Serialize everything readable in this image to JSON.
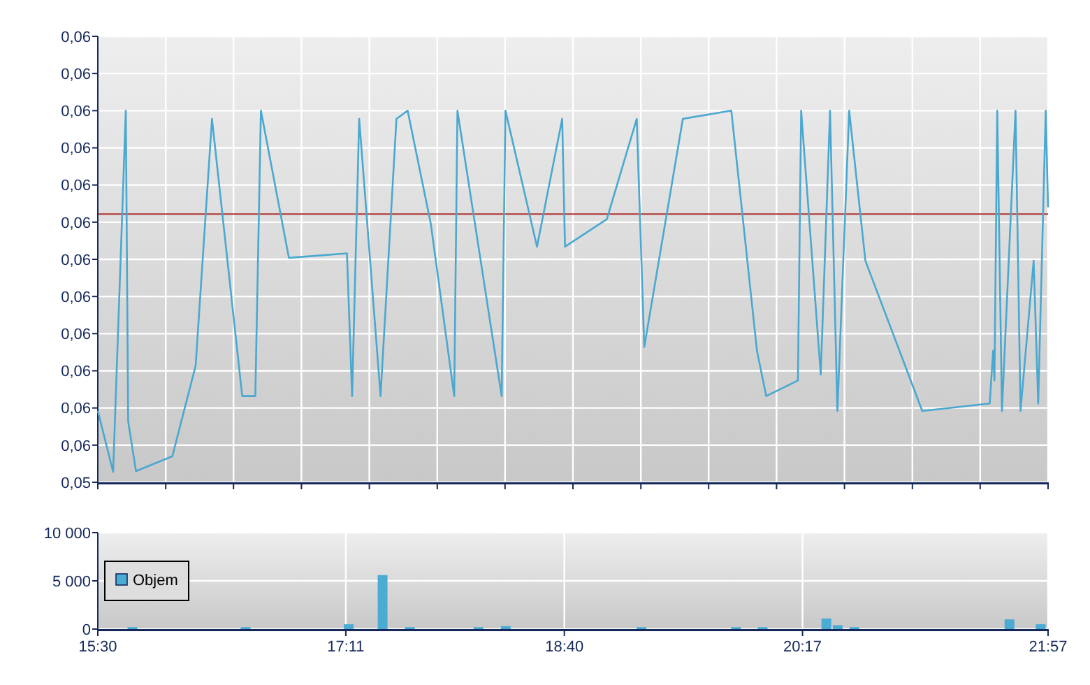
{
  "chart_data": [
    {
      "type": "line",
      "x": [
        15.5,
        15.604,
        15.69,
        15.706,
        15.759,
        16.006,
        16.164,
        16.275,
        16.48,
        16.569,
        16.607,
        16.797,
        17.191,
        17.226,
        17.274,
        17.419,
        17.527,
        17.603,
        17.76,
        17.919,
        17.941,
        18.241,
        18.267,
        18.481,
        18.652,
        18.671,
        18.955,
        19.158,
        19.209,
        19.471,
        19.8,
        19.974,
        20.037,
        20.252,
        20.274,
        20.407,
        20.47,
        20.52,
        20.6,
        20.71,
        21.096,
        21.554,
        21.577,
        21.586,
        21.605,
        21.637,
        21.729,
        21.763,
        21.852,
        21.883,
        21.934,
        21.95
      ],
      "values": [
        0.05596,
        0.05514,
        0.06,
        0.05582,
        0.05515,
        0.05535,
        0.05657,
        0.05989,
        0.05616,
        0.05616,
        0.06,
        0.05802,
        0.05808,
        0.05616,
        0.05989,
        0.05616,
        0.05989,
        0.06,
        0.05848,
        0.05616,
        0.06,
        0.05616,
        0.06,
        0.05817,
        0.05989,
        0.05817,
        0.05854,
        0.05989,
        0.05682,
        0.05989,
        0.06,
        0.05677,
        0.05616,
        0.05637,
        0.06,
        0.05645,
        0.06,
        0.05596,
        0.06,
        0.05798,
        0.05596,
        0.05606,
        0.05677,
        0.05637,
        0.06,
        0.05596,
        0.06,
        0.05596,
        0.05798,
        0.05606,
        0.06,
        0.0587
      ],
      "color": "#4aa8d0",
      "xlim": [
        15.5,
        21.95
      ],
      "xticks": [
        {
          "value": 15.5,
          "label": null
        },
        {
          "value": 15.961,
          "label": null
        },
        {
          "value": 16.421,
          "label": null
        },
        {
          "value": 16.882,
          "label": null
        },
        {
          "value": 17.343,
          "label": null
        },
        {
          "value": 17.804,
          "label": null
        },
        {
          "value": 18.264,
          "label": null
        },
        {
          "value": 18.725,
          "label": null
        },
        {
          "value": 19.186,
          "label": null
        },
        {
          "value": 19.646,
          "label": null
        },
        {
          "value": 20.107,
          "label": null
        },
        {
          "value": 20.568,
          "label": null
        },
        {
          "value": 21.029,
          "label": null
        },
        {
          "value": 21.489,
          "label": null
        },
        {
          "value": 21.95,
          "label": null
        }
      ],
      "ylim": [
        0.055,
        0.061
      ],
      "yticks": [
        {
          "value": 0.055,
          "label": "0,05"
        },
        {
          "value": 0.0555,
          "label": "0,06"
        },
        {
          "value": 0.056,
          "label": "0,06"
        },
        {
          "value": 0.0565,
          "label": "0,06"
        },
        {
          "value": 0.057,
          "label": "0,06"
        },
        {
          "value": 0.0575,
          "label": "0,06"
        },
        {
          "value": 0.058,
          "label": "0,06"
        },
        {
          "value": 0.0585,
          "label": "0,06"
        },
        {
          "value": 0.059,
          "label": "0,06"
        },
        {
          "value": 0.0595,
          "label": "0,06"
        },
        {
          "value": 0.06,
          "label": "0,06"
        },
        {
          "value": 0.0605,
          "label": "0,06"
        },
        {
          "value": 0.061,
          "label": "0,06"
        }
      ],
      "grid": true,
      "tick_labels": "y",
      "ref_lines": [
        {
          "axis": "y",
          "value": 0.05861,
          "color": "#b03030"
        }
      ]
    },
    {
      "type": "bar",
      "x": [
        15.735,
        16.503,
        17.203,
        17.433,
        17.618,
        18.084,
        18.269,
        19.19,
        19.832,
        20.012,
        20.445,
        20.522,
        20.635,
        21.688,
        21.9
      ],
      "series": [
        {
          "name": "Objem",
          "color": "#4aacd4",
          "values": [
            200,
            200,
            500,
            5600,
            200,
            200,
            300,
            200,
            200,
            200,
            1100,
            400,
            200,
            1000,
            500
          ]
        }
      ],
      "xlim": [
        15.5,
        21.95
      ],
      "xticks": [
        {
          "value": 15.5,
          "label": "15:30"
        },
        {
          "value": 17.1833,
          "label": "17:11"
        },
        {
          "value": 18.6667,
          "label": "18:40"
        },
        {
          "value": 20.2833,
          "label": "20:17"
        },
        {
          "value": 21.95,
          "label": "21:57"
        }
      ],
      "ylim": [
        0,
        10000
      ],
      "yticks": [
        {
          "value": 0,
          "label": "0"
        },
        {
          "value": 5000,
          "label": "5 000"
        },
        {
          "value": 10000,
          "label": "10 000"
        }
      ],
      "grid": true,
      "legend": "left"
    }
  ]
}
